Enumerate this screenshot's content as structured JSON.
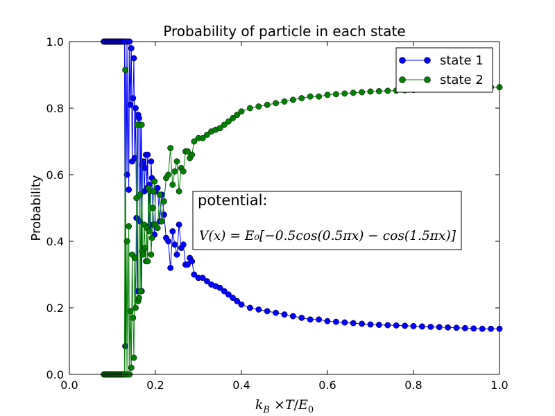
{
  "chart_data": {
    "type": "line",
    "title": "Probability of particle in each state",
    "xlabel": "k_B ×T/E_0",
    "xlabel_parts": {
      "k": "k",
      "B": "B",
      "times": " ×",
      "T": "T",
      "slash": "/",
      "E": "E",
      "sub0": "0"
    },
    "ylabel": "Probability",
    "xlim": [
      0.0,
      1.0
    ],
    "ylim": [
      0.0,
      1.0
    ],
    "xticks": [
      "0.0",
      "0.2",
      "0.4",
      "0.6",
      "0.8",
      "1.0"
    ],
    "yticks": [
      "0.0",
      "0.2",
      "0.4",
      "0.6",
      "0.8",
      "1.0"
    ],
    "grid": false,
    "legend_position": "top-right",
    "annotation": {
      "heading": "potential:",
      "formula": "V(x) = E₀[−0.5cos(0.5πx) − cos(1.5πx)]"
    },
    "series": [
      {
        "name": "state 1",
        "color": "#0000ff",
        "marker": "circle",
        "x": [
          0.08,
          0.082,
          0.084,
          0.086,
          0.088,
          0.09,
          0.092,
          0.094,
          0.096,
          0.098,
          0.1,
          0.102,
          0.104,
          0.106,
          0.108,
          0.11,
          0.112,
          0.114,
          0.116,
          0.118,
          0.12,
          0.122,
          0.124,
          0.126,
          0.128,
          0.13,
          0.132,
          0.134,
          0.136,
          0.138,
          0.14,
          0.142,
          0.144,
          0.146,
          0.148,
          0.15,
          0.152,
          0.154,
          0.156,
          0.158,
          0.16,
          0.162,
          0.164,
          0.166,
          0.168,
          0.17,
          0.172,
          0.174,
          0.176,
          0.178,
          0.18,
          0.182,
          0.184,
          0.186,
          0.188,
          0.19,
          0.192,
          0.194,
          0.196,
          0.198,
          0.2,
          0.205,
          0.21,
          0.215,
          0.22,
          0.225,
          0.23,
          0.235,
          0.24,
          0.245,
          0.25,
          0.255,
          0.26,
          0.265,
          0.27,
          0.275,
          0.28,
          0.285,
          0.29,
          0.3,
          0.31,
          0.32,
          0.33,
          0.34,
          0.35,
          0.36,
          0.37,
          0.38,
          0.39,
          0.4,
          0.42,
          0.44,
          0.46,
          0.48,
          0.5,
          0.52,
          0.54,
          0.56,
          0.58,
          0.6,
          0.62,
          0.64,
          0.66,
          0.68,
          0.7,
          0.72,
          0.74,
          0.76,
          0.78,
          0.8,
          0.82,
          0.84,
          0.86,
          0.88,
          0.9,
          0.92,
          0.94,
          0.96,
          0.98,
          1.0
        ],
        "y": [
          1.0,
          1.0,
          1.0,
          1.0,
          1.0,
          1.0,
          1.0,
          1.0,
          1.0,
          1.0,
          1.0,
          1.0,
          1.0,
          1.0,
          1.0,
          1.0,
          1.0,
          1.0,
          1.0,
          1.0,
          1.0,
          1.0,
          1.0,
          1.0,
          1.0,
          0.085,
          1.0,
          0.6,
          1.0,
          0.555,
          1.0,
          0.81,
          0.98,
          0.64,
          0.83,
          0.95,
          0.65,
          0.8,
          0.47,
          0.25,
          0.78,
          0.77,
          0.46,
          0.75,
          0.25,
          0.63,
          0.64,
          0.55,
          0.62,
          0.66,
          0.56,
          0.66,
          0.44,
          0.57,
          0.45,
          0.64,
          0.59,
          0.5,
          0.45,
          0.42,
          0.55,
          0.56,
          0.46,
          0.54,
          0.48,
          0.41,
          0.4,
          0.32,
          0.43,
          0.39,
          0.36,
          0.45,
          0.38,
          0.39,
          0.33,
          0.33,
          0.35,
          0.34,
          0.3,
          0.29,
          0.29,
          0.28,
          0.27,
          0.265,
          0.26,
          0.25,
          0.24,
          0.23,
          0.22,
          0.21,
          0.2,
          0.195,
          0.19,
          0.185,
          0.18,
          0.175,
          0.17,
          0.165,
          0.165,
          0.16,
          0.158,
          0.156,
          0.154,
          0.152,
          0.15,
          0.149,
          0.148,
          0.147,
          0.146,
          0.145,
          0.144,
          0.143,
          0.142,
          0.141,
          0.14,
          0.139,
          0.138,
          0.137,
          0.137,
          0.137
        ]
      },
      {
        "name": "state 2",
        "color": "#008000",
        "marker": "circle",
        "x": [
          0.08,
          0.082,
          0.084,
          0.086,
          0.088,
          0.09,
          0.092,
          0.094,
          0.096,
          0.098,
          0.1,
          0.102,
          0.104,
          0.106,
          0.108,
          0.11,
          0.112,
          0.114,
          0.116,
          0.118,
          0.12,
          0.122,
          0.124,
          0.126,
          0.128,
          0.13,
          0.132,
          0.134,
          0.136,
          0.138,
          0.14,
          0.142,
          0.144,
          0.146,
          0.148,
          0.15,
          0.152,
          0.154,
          0.156,
          0.158,
          0.16,
          0.162,
          0.164,
          0.166,
          0.168,
          0.17,
          0.172,
          0.174,
          0.176,
          0.178,
          0.18,
          0.182,
          0.184,
          0.186,
          0.188,
          0.19,
          0.192,
          0.194,
          0.196,
          0.198,
          0.2,
          0.205,
          0.21,
          0.215,
          0.22,
          0.225,
          0.23,
          0.235,
          0.24,
          0.245,
          0.25,
          0.255,
          0.26,
          0.265,
          0.27,
          0.275,
          0.28,
          0.285,
          0.29,
          0.3,
          0.31,
          0.32,
          0.33,
          0.34,
          0.35,
          0.36,
          0.37,
          0.38,
          0.39,
          0.4,
          0.42,
          0.44,
          0.46,
          0.48,
          0.5,
          0.52,
          0.54,
          0.56,
          0.58,
          0.6,
          0.62,
          0.64,
          0.66,
          0.68,
          0.7,
          0.72,
          0.74,
          0.76,
          0.78,
          0.8,
          0.82,
          0.84,
          0.86,
          0.88,
          0.9,
          0.92,
          0.94,
          0.96,
          0.98,
          1.0
        ],
        "y": [
          0.0,
          0.0,
          0.0,
          0.0,
          0.0,
          0.0,
          0.0,
          0.0,
          0.0,
          0.0,
          0.0,
          0.0,
          0.0,
          0.0,
          0.0,
          0.0,
          0.0,
          0.0,
          0.0,
          0.0,
          0.0,
          0.0,
          0.0,
          0.0,
          0.0,
          0.915,
          0.0,
          0.4,
          0.0,
          0.445,
          0.0,
          0.19,
          0.02,
          0.36,
          0.17,
          0.05,
          0.35,
          0.2,
          0.53,
          0.75,
          0.22,
          0.23,
          0.54,
          0.25,
          0.75,
          0.37,
          0.36,
          0.45,
          0.38,
          0.34,
          0.44,
          0.34,
          0.56,
          0.43,
          0.55,
          0.36,
          0.41,
          0.5,
          0.55,
          0.58,
          0.45,
          0.44,
          0.54,
          0.46,
          0.52,
          0.59,
          0.6,
          0.68,
          0.57,
          0.61,
          0.64,
          0.55,
          0.62,
          0.61,
          0.67,
          0.67,
          0.65,
          0.66,
          0.7,
          0.71,
          0.71,
          0.72,
          0.73,
          0.735,
          0.74,
          0.75,
          0.76,
          0.77,
          0.78,
          0.79,
          0.8,
          0.805,
          0.81,
          0.815,
          0.82,
          0.825,
          0.83,
          0.835,
          0.835,
          0.84,
          0.842,
          0.844,
          0.846,
          0.848,
          0.85,
          0.851,
          0.852,
          0.853,
          0.854,
          0.855,
          0.856,
          0.857,
          0.858,
          0.859,
          0.86,
          0.861,
          0.862,
          0.863,
          0.863,
          0.863
        ]
      }
    ]
  }
}
